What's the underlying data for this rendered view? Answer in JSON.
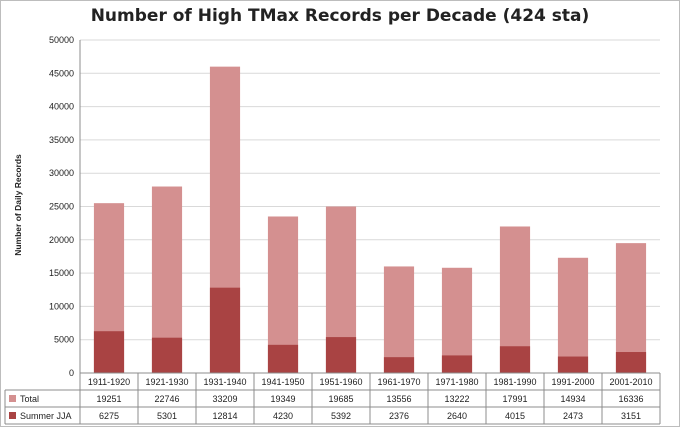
{
  "chart_data": {
    "type": "bar",
    "stacked": false,
    "title": "Number of High TMax Records per Decade (424 sta)",
    "ylabel": "Number of Daily Records",
    "xlabel": "",
    "ylim": [
      0,
      50000
    ],
    "yticks": [
      0,
      5000,
      10000,
      15000,
      20000,
      25000,
      30000,
      35000,
      40000,
      45000,
      50000
    ],
    "grid": true,
    "legend": "data-table",
    "categories": [
      "1911-1920",
      "1921-1930",
      "1931-1940",
      "1941-1950",
      "1951-1960",
      "1961-1970",
      "1971-1980",
      "1981-1990",
      "1991-2000",
      "2001-2010"
    ],
    "series": [
      {
        "name": "Total",
        "color": "#d49090",
        "values": [
          19251,
          22746,
          33209,
          19349,
          19685,
          13556,
          13222,
          17991,
          14934,
          16336
        ],
        "bar_heights": [
          25500,
          28000,
          46000,
          23500,
          25000,
          16000,
          15800,
          22000,
          17300,
          19500
        ]
      },
      {
        "name": "Summer JJA",
        "color": "#a94343",
        "values": [
          6275,
          5301,
          12814,
          4230,
          5392,
          2376,
          2640,
          4015,
          2473,
          3151
        ]
      }
    ]
  }
}
